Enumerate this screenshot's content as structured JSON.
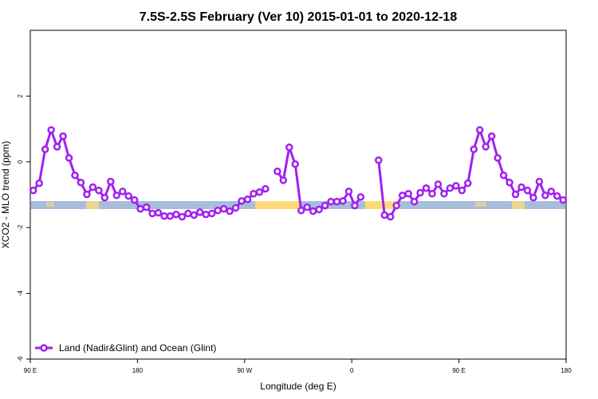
{
  "chart_data": {
    "type": "line",
    "title": "7.5S-2.5S February (Ver 10)   2015-01-01 to 2020-12-18",
    "xlabel": "Longitude (deg E)",
    "ylabel": "XCO2 - MLO trend (ppm)",
    "x": [
      92.5,
      97.5,
      102.5,
      107.5,
      112.5,
      117.5,
      122.5,
      127.5,
      132.5,
      137.5,
      142.5,
      147.5,
      152.5,
      157.5,
      162.5,
      167.5,
      172.5,
      177.5,
      182.5,
      187.5,
      192.5,
      197.5,
      202.5,
      207.5,
      212.5,
      217.5,
      222.5,
      227.5,
      232.5,
      237.5,
      242.5,
      247.5,
      252.5,
      257.5,
      262.5,
      267.5,
      272.5,
      277.5,
      282.5,
      287.5,
      292.5,
      297.5,
      302.5,
      307.5,
      312.5,
      317.5,
      322.5,
      327.5,
      332.5,
      337.5,
      342.5,
      347.5,
      352.5,
      357.5,
      362.5,
      367.5,
      372.5,
      377.5,
      382.5,
      387.5,
      392.5,
      397.5,
      402.5,
      407.5,
      412.5,
      417.5,
      422.5,
      427.5,
      432.5,
      437.5,
      442.5,
      447.5,
      452.5,
      457.5,
      462.5,
      467.5,
      472.5,
      477.5,
      482.5,
      487.5,
      492.5,
      497.5,
      502.5,
      507.5,
      512.5,
      517.5,
      522.5,
      527.5,
      532.5,
      537.5
    ],
    "series": [
      {
        "name": "Land (Nadir&Glint) and Ocean (Glint)",
        "color": "#a020f0",
        "values": [
          -0.87,
          -0.65,
          0.38,
          0.97,
          0.46,
          0.78,
          0.12,
          -0.41,
          -0.63,
          -0.99,
          -0.77,
          -0.87,
          -1.09,
          -0.6,
          -1.02,
          -0.9,
          -1.04,
          -1.16,
          -1.43,
          -1.38,
          -1.57,
          -1.55,
          -1.65,
          -1.65,
          -1.6,
          -1.67,
          -1.57,
          -1.62,
          -1.53,
          -1.6,
          -1.57,
          -1.48,
          -1.43,
          -1.5,
          -1.4,
          -1.19,
          -1.14,
          -0.97,
          -0.92,
          -0.82,
          null,
          -0.29,
          -0.56,
          0.44,
          -0.07,
          -1.48,
          -1.38,
          -1.5,
          -1.45,
          -1.33,
          -1.21,
          -1.21,
          -1.19,
          -0.9,
          -1.33,
          -1.07,
          null,
          null,
          0.05,
          -1.62,
          -1.67,
          -1.33,
          -1.02,
          -0.97,
          -1.21,
          -0.94,
          -0.8,
          -0.97,
          -0.68,
          -0.97,
          -0.8,
          -0.73,
          -0.87,
          -0.65,
          0.38,
          0.97,
          0.46,
          0.78,
          0.12,
          -0.41,
          -0.63,
          -0.99,
          -0.77,
          -0.87,
          -1.09,
          -0.6,
          -1.02,
          -0.9,
          -1.04,
          -1.16
        ]
      }
    ],
    "xlim": [
      90,
      540
    ],
    "xticks": [
      {
        "value": 90,
        "label": "90 E"
      },
      180,
      {
        "value": 270,
        "label": "90 W"
      },
      {
        "value": 360,
        "label": "0"
      },
      {
        "value": 450,
        "label": "90 E"
      },
      {
        "value": 540,
        "label": "180"
      }
    ],
    "ylim": [
      -6,
      4
    ],
    "yticks": [
      -6,
      -4,
      -2,
      0,
      2
    ],
    "legend": "bottom-left"
  }
}
